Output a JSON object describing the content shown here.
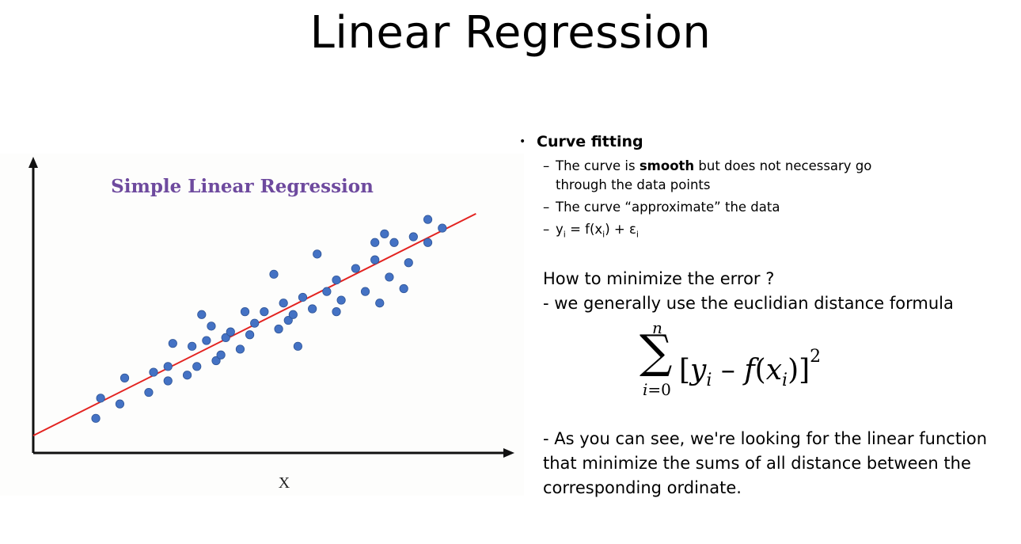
{
  "slide": {
    "title": "Linear Regression"
  },
  "chart_data": {
    "type": "scatter",
    "title": "Simple Linear Regression",
    "xlabel": "X",
    "ylabel": "",
    "xlim": [
      0,
      10
    ],
    "ylim": [
      0,
      10
    ],
    "grid": false,
    "legend": "none",
    "points_color": "#4472c4",
    "line_color": "#e32320",
    "title_color": "#6e4a9e",
    "regression_line": {
      "x": [
        0,
        9.2
      ],
      "y": [
        0.6,
        8.3
      ]
    },
    "points": [
      {
        "x": 1.3,
        "y": 1.2
      },
      {
        "x": 1.4,
        "y": 1.9
      },
      {
        "x": 1.8,
        "y": 1.7
      },
      {
        "x": 1.9,
        "y": 2.6
      },
      {
        "x": 2.4,
        "y": 2.1
      },
      {
        "x": 2.5,
        "y": 2.8
      },
      {
        "x": 2.8,
        "y": 2.5
      },
      {
        "x": 2.8,
        "y": 3.0
      },
      {
        "x": 2.9,
        "y": 3.8
      },
      {
        "x": 3.2,
        "y": 2.7
      },
      {
        "x": 3.3,
        "y": 3.7
      },
      {
        "x": 3.4,
        "y": 3.0
      },
      {
        "x": 3.5,
        "y": 4.8
      },
      {
        "x": 3.6,
        "y": 3.9
      },
      {
        "x": 3.7,
        "y": 4.4
      },
      {
        "x": 3.8,
        "y": 3.2
      },
      {
        "x": 3.9,
        "y": 3.4
      },
      {
        "x": 4.0,
        "y": 4.0
      },
      {
        "x": 4.1,
        "y": 4.2
      },
      {
        "x": 4.3,
        "y": 3.6
      },
      {
        "x": 4.4,
        "y": 4.9
      },
      {
        "x": 4.5,
        "y": 4.1
      },
      {
        "x": 4.6,
        "y": 4.5
      },
      {
        "x": 4.8,
        "y": 4.9
      },
      {
        "x": 5.0,
        "y": 6.2
      },
      {
        "x": 5.1,
        "y": 4.3
      },
      {
        "x": 5.2,
        "y": 5.2
      },
      {
        "x": 5.3,
        "y": 4.6
      },
      {
        "x": 5.4,
        "y": 4.8
      },
      {
        "x": 5.5,
        "y": 3.7
      },
      {
        "x": 5.6,
        "y": 5.4
      },
      {
        "x": 5.8,
        "y": 5.0
      },
      {
        "x": 5.9,
        "y": 6.9
      },
      {
        "x": 6.1,
        "y": 5.6
      },
      {
        "x": 6.3,
        "y": 4.9
      },
      {
        "x": 6.3,
        "y": 6.0
      },
      {
        "x": 6.4,
        "y": 5.3
      },
      {
        "x": 6.7,
        "y": 6.4
      },
      {
        "x": 6.9,
        "y": 5.6
      },
      {
        "x": 7.1,
        "y": 6.7
      },
      {
        "x": 7.1,
        "y": 7.3
      },
      {
        "x": 7.2,
        "y": 5.2
      },
      {
        "x": 7.3,
        "y": 7.6
      },
      {
        "x": 7.4,
        "y": 6.1
      },
      {
        "x": 7.5,
        "y": 7.3
      },
      {
        "x": 7.7,
        "y": 5.7
      },
      {
        "x": 7.8,
        "y": 6.6
      },
      {
        "x": 7.9,
        "y": 7.5
      },
      {
        "x": 8.2,
        "y": 8.1
      },
      {
        "x": 8.2,
        "y": 7.3
      },
      {
        "x": 8.5,
        "y": 7.8
      }
    ]
  },
  "bullets": {
    "main": "Curve fitting",
    "sub1_pre": "The curve is ",
    "sub1_bold": "smooth",
    "sub1_post": " but does not necessary go",
    "sub1_cont": "through the data points",
    "sub2": "The curve “approximate” the data",
    "sub3_y": "y",
    "sub3_i1": "i",
    "sub3_mid": " = f(x",
    "sub3_i2": "i",
    "sub3_end": ") + ε",
    "sub3_i3": "i"
  },
  "explain": {
    "line1": "How to minimize the error ?",
    "line2": "- we generally use the euclidian distance formula",
    "line3": "- As you can see, we're looking for the linear function",
    "line4": "that minimize the sums of all distance between the",
    "line5": "corresponding ordinate."
  },
  "formula": {
    "upper": "n",
    "sigma": "∑",
    "lower_var": "i",
    "lower_rest": "=0",
    "open": "[",
    "y": "y",
    "i": "i",
    "minus": " – ",
    "f": "f",
    "paren_open": "(",
    "x": "x",
    "paren_close": ")",
    "close": "]",
    "power": "2"
  }
}
